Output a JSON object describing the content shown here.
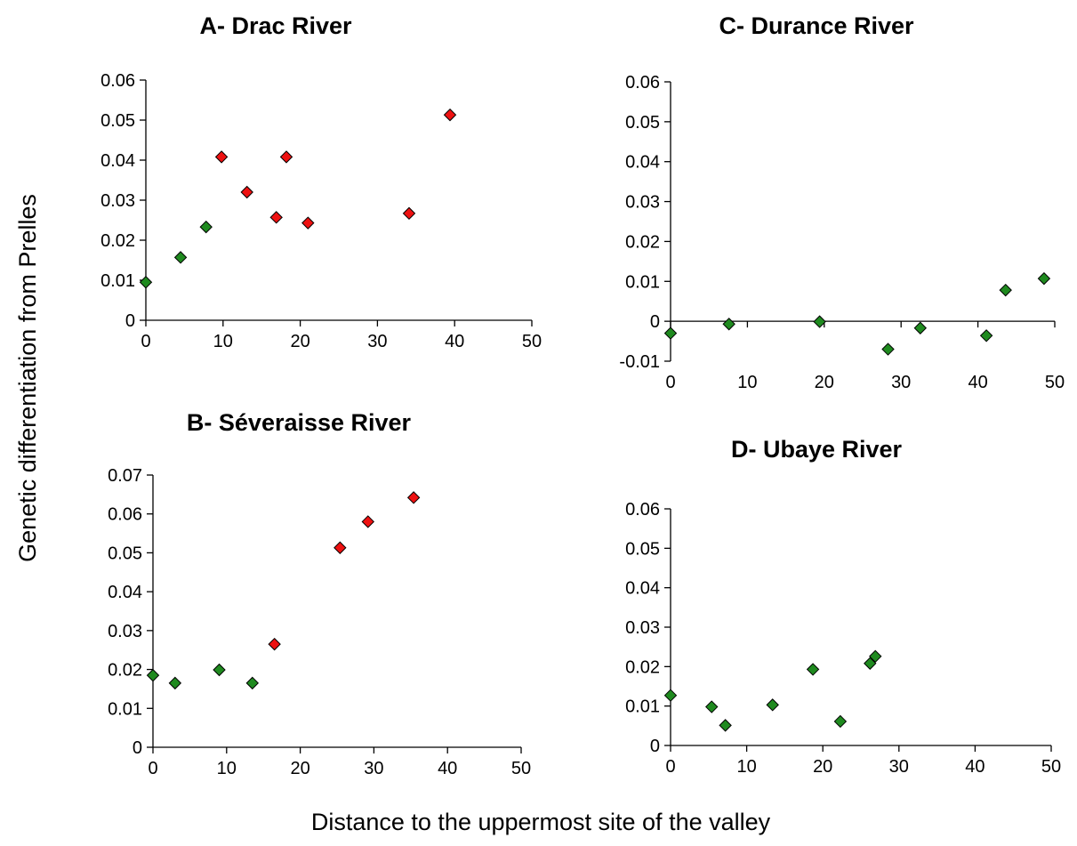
{
  "figure": {
    "ylabel": "Genetic differentiation from Prelles",
    "xlabel": "Distance to the uppermost site of the valley"
  },
  "colors": {
    "green": "#1f8a1f",
    "red": "#ee1111",
    "marker_edge": "#000000",
    "axis": "#000000"
  },
  "chart_data": [
    {
      "id": "A",
      "type": "scatter",
      "title": "A- Drac River",
      "xlim": [
        0,
        50
      ],
      "ylim": [
        0,
        0.06
      ],
      "xticks": [
        "0",
        "10",
        "20",
        "30",
        "40",
        "50"
      ],
      "yticks": [
        "0",
        "0.01",
        "0.02",
        "0.03",
        "0.04",
        "0.05",
        "0.06"
      ],
      "xticks_val": [
        0,
        10,
        20,
        30,
        40,
        50
      ],
      "yticks_val": [
        0,
        0.01,
        0.02,
        0.03,
        0.04,
        0.05,
        0.06
      ],
      "points": [
        {
          "x": 0,
          "y": 0.0095,
          "color": "green"
        },
        {
          "x": 4.5,
          "y": 0.0157,
          "color": "green"
        },
        {
          "x": 7.8,
          "y": 0.0233,
          "color": "green"
        },
        {
          "x": 9.8,
          "y": 0.0408,
          "color": "red"
        },
        {
          "x": 13.1,
          "y": 0.032,
          "color": "red"
        },
        {
          "x": 16.9,
          "y": 0.0257,
          "color": "red"
        },
        {
          "x": 18.2,
          "y": 0.0408,
          "color": "red"
        },
        {
          "x": 21.0,
          "y": 0.0243,
          "color": "red"
        },
        {
          "x": 34.1,
          "y": 0.0267,
          "color": "red"
        },
        {
          "x": 39.4,
          "y": 0.0513,
          "color": "red"
        }
      ]
    },
    {
      "id": "C",
      "type": "scatter",
      "title": "C- Durance River",
      "xlim": [
        0,
        50
      ],
      "ylim": [
        -0.01,
        0.06
      ],
      "xticks": [
        "0",
        "10",
        "20",
        "30",
        "40",
        "50"
      ],
      "yticks": [
        "-0.01",
        "0",
        "0.01",
        "0.02",
        "0.03",
        "0.04",
        "0.05",
        "0.06"
      ],
      "xticks_val": [
        0,
        10,
        20,
        30,
        40,
        50
      ],
      "yticks_val": [
        -0.01,
        0,
        0.01,
        0.02,
        0.03,
        0.04,
        0.05,
        0.06
      ],
      "points": [
        {
          "x": 0,
          "y": -0.003,
          "color": "green"
        },
        {
          "x": 7.6,
          "y": -0.0007,
          "color": "green"
        },
        {
          "x": 19.4,
          "y": -0.0001,
          "color": "green"
        },
        {
          "x": 28.3,
          "y": -0.007,
          "color": "green"
        },
        {
          "x": 32.5,
          "y": -0.0017,
          "color": "green"
        },
        {
          "x": 41.1,
          "y": -0.0036,
          "color": "green"
        },
        {
          "x": 43.6,
          "y": 0.0078,
          "color": "green"
        },
        {
          "x": 48.6,
          "y": 0.0107,
          "color": "green"
        }
      ]
    },
    {
      "id": "B",
      "type": "scatter",
      "title": "B- Séveraisse River",
      "xlim": [
        0,
        50
      ],
      "ylim": [
        0,
        0.07
      ],
      "xticks": [
        "0",
        "10",
        "20",
        "30",
        "40",
        "50"
      ],
      "yticks": [
        "0",
        "0.01",
        "0.02",
        "0.03",
        "0.04",
        "0.05",
        "0.06",
        "0.07"
      ],
      "xticks_val": [
        0,
        10,
        20,
        30,
        40,
        50
      ],
      "yticks_val": [
        0,
        0.01,
        0.02,
        0.03,
        0.04,
        0.05,
        0.06,
        0.07
      ],
      "points": [
        {
          "x": 0,
          "y": 0.0185,
          "color": "green"
        },
        {
          "x": 3.0,
          "y": 0.0165,
          "color": "green"
        },
        {
          "x": 9.0,
          "y": 0.0199,
          "color": "green"
        },
        {
          "x": 13.5,
          "y": 0.0165,
          "color": "green"
        },
        {
          "x": 16.5,
          "y": 0.0265,
          "color": "red"
        },
        {
          "x": 25.4,
          "y": 0.0513,
          "color": "red"
        },
        {
          "x": 29.2,
          "y": 0.058,
          "color": "red"
        },
        {
          "x": 35.4,
          "y": 0.0642,
          "color": "red"
        }
      ]
    },
    {
      "id": "D",
      "type": "scatter",
      "title": "D- Ubaye River",
      "xlim": [
        0,
        50
      ],
      "ylim": [
        0,
        0.06
      ],
      "xticks": [
        "0",
        "10",
        "20",
        "30",
        "40",
        "50"
      ],
      "yticks": [
        "0",
        "0.01",
        "0.02",
        "0.03",
        "0.04",
        "0.05",
        "0.06"
      ],
      "xticks_val": [
        0,
        10,
        20,
        30,
        40,
        50
      ],
      "yticks_val": [
        0,
        0.01,
        0.02,
        0.03,
        0.04,
        0.05,
        0.06
      ],
      "points": [
        {
          "x": 0,
          "y": 0.0127,
          "color": "green"
        },
        {
          "x": 5.4,
          "y": 0.0098,
          "color": "green"
        },
        {
          "x": 7.2,
          "y": 0.0051,
          "color": "green"
        },
        {
          "x": 13.4,
          "y": 0.0103,
          "color": "green"
        },
        {
          "x": 18.7,
          "y": 0.0193,
          "color": "green"
        },
        {
          "x": 22.3,
          "y": 0.0061,
          "color": "green"
        },
        {
          "x": 26.2,
          "y": 0.0208,
          "color": "green"
        },
        {
          "x": 26.9,
          "y": 0.0226,
          "color": "green"
        }
      ]
    }
  ]
}
